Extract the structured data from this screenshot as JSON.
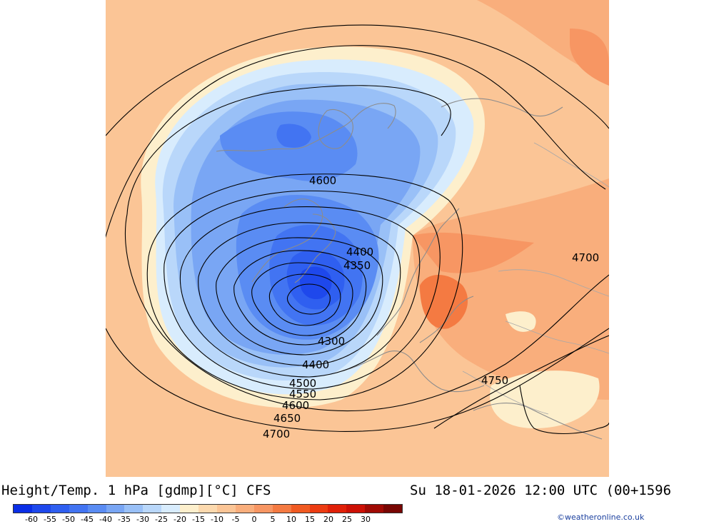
{
  "title_left": "Height/Temp. 1 hPa [gdmp][°C] CFS",
  "title_right": "Su 18-01-2026 12:00 UTC (00+1596",
  "credit": "©weatheronline.co.uk",
  "legend": {
    "colors": [
      "#0a2ee6",
      "#1e48ec",
      "#2f5ff0",
      "#4274f2",
      "#5a8cf3",
      "#79a6f4",
      "#99c0f7",
      "#b9d7fa",
      "#d8ecfd",
      "#fdefcc",
      "#fcd9ae",
      "#fbc596",
      "#f9ae7c",
      "#f79663",
      "#f47a42",
      "#f05a22",
      "#ec3c12",
      "#e02008",
      "#cc1005",
      "#a00a04",
      "#780603"
    ],
    "tick_labels": [
      "-60",
      "-55",
      "-50",
      "-45",
      "-40",
      "-35",
      "-30",
      "-25",
      "-20",
      "-15",
      "-10",
      "-5",
      "0",
      "5",
      "10",
      "15",
      "20",
      "25",
      "30"
    ]
  },
  "contour_labels": [
    {
      "text": "4600"
    },
    {
      "text": "4400"
    },
    {
      "text": "4350"
    },
    {
      "text": "4300"
    },
    {
      "text": "4400"
    },
    {
      "text": "4500"
    },
    {
      "text": "4550"
    },
    {
      "text": "4600"
    },
    {
      "text": "4650"
    },
    {
      "text": "4700"
    },
    {
      "text": "4700"
    },
    {
      "text": "4750"
    }
  ]
}
